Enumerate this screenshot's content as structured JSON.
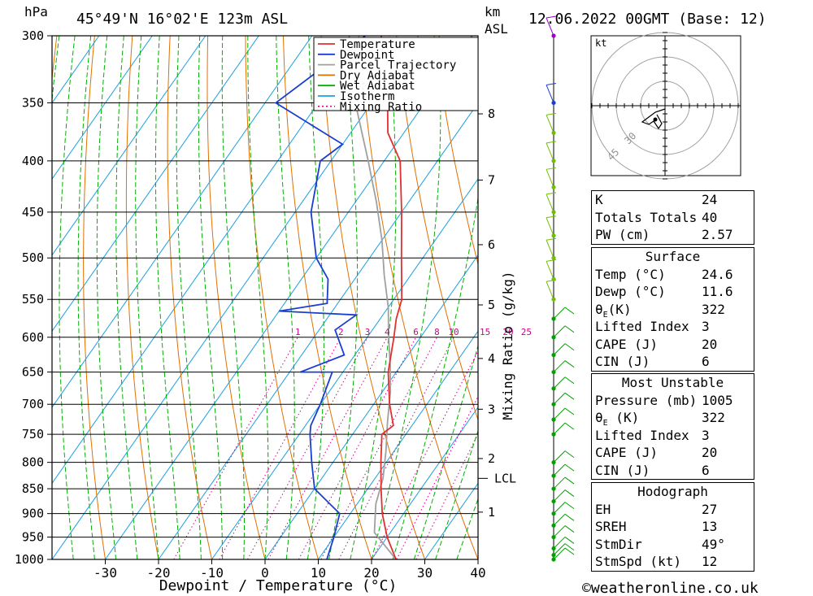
{
  "header": {
    "hpa_unit": "hPa",
    "location": "45°49'N  16°02'E  123m  ASL",
    "km_unit": "km",
    "asl_unit": "ASL",
    "datetime": "12.06.2022  00GMT  (Base: 12)"
  },
  "chart_data": {
    "type": "line",
    "title": "",
    "xlabel": "Dewpoint / Temperature (°C)",
    "ylabel": "hPa",
    "y_right_label": "Mixing Ratio (g/kg)",
    "xlim": [
      -40,
      40
    ],
    "ylim": [
      1000,
      300
    ],
    "x_ticks": [
      -30,
      -20,
      -10,
      0,
      10,
      20,
      30,
      40
    ],
    "pressure_levels": [
      300,
      350,
      400,
      450,
      500,
      550,
      600,
      650,
      700,
      750,
      800,
      850,
      900,
      950,
      1000
    ],
    "km_ticks": [
      {
        "label": "8",
        "p": 359
      },
      {
        "label": "7",
        "p": 418
      },
      {
        "label": "6",
        "p": 485
      },
      {
        "label": "5",
        "p": 557
      },
      {
        "label": "4",
        "p": 630
      },
      {
        "label": "3",
        "p": 708
      },
      {
        "label": "2",
        "p": 793
      },
      {
        "label": "1",
        "p": 897
      }
    ],
    "lcl": {
      "label": "LCL",
      "p": 830
    },
    "mixing_ratio_labels": [
      "1",
      "2",
      "3",
      "4",
      "6",
      "8",
      "10",
      "15",
      "20",
      "25"
    ],
    "mixing_ratio_values": [
      1,
      2,
      3,
      4,
      6,
      8,
      10,
      15,
      20,
      25
    ],
    "legend": [
      {
        "name": "Temperature",
        "color": "#e03030",
        "style": "solid"
      },
      {
        "name": "Dewpoint",
        "color": "#1a3fd0",
        "style": "solid"
      },
      {
        "name": "Parcel Trajectory",
        "color": "#a0a0a0",
        "style": "solid"
      },
      {
        "name": "Dry Adiabat",
        "color": "#e07000",
        "style": "solid"
      },
      {
        "name": "Wet Adiabat",
        "color": "#00b000",
        "style": "solid"
      },
      {
        "name": "Isotherm",
        "color": "#1aa0e0",
        "style": "solid"
      },
      {
        "name": "Mixing Ratio",
        "color": "#d0008a",
        "style": "dotted"
      }
    ],
    "series": [
      {
        "name": "Temperature",
        "color": "#e03030",
        "points": [
          [
            24.6,
            1000
          ],
          [
            20,
            950
          ],
          [
            16,
            900
          ],
          [
            12.5,
            850
          ],
          [
            9,
            800
          ],
          [
            5.5,
            750
          ],
          [
            6.5,
            735
          ],
          [
            3,
            700
          ],
          [
            -1.5,
            650
          ],
          [
            -5,
            600
          ],
          [
            -7,
            575
          ],
          [
            -8.5,
            550
          ],
          [
            -14,
            500
          ],
          [
            -20,
            450
          ],
          [
            -27,
            400
          ],
          [
            -33,
            375
          ],
          [
            -37,
            350
          ],
          [
            -47,
            300
          ]
        ]
      },
      {
        "name": "Dewpoint",
        "color": "#1a3fd0",
        "points": [
          [
            11.6,
            1000
          ],
          [
            10,
            950
          ],
          [
            8,
            900
          ],
          [
            0,
            850
          ],
          [
            -4,
            800
          ],
          [
            -8,
            750
          ],
          [
            -9,
            735
          ],
          [
            -10,
            700
          ],
          [
            -12,
            650
          ],
          [
            -18,
            650
          ],
          [
            -12,
            625
          ],
          [
            -17,
            590
          ],
          [
            -15,
            570
          ],
          [
            -30,
            565
          ],
          [
            -22,
            555
          ],
          [
            -25,
            525
          ],
          [
            -30,
            500
          ],
          [
            -37,
            450
          ],
          [
            -42,
            400
          ],
          [
            -40,
            385
          ],
          [
            -58,
            350
          ],
          [
            -50,
            300
          ]
        ]
      },
      {
        "name": "Parcel Trajectory",
        "color": "#a0a0a0",
        "points": [
          [
            24.6,
            1000
          ],
          [
            17,
            940
          ],
          [
            13.5,
            880
          ],
          [
            11.5,
            830
          ],
          [
            8.5,
            780
          ],
          [
            5,
            730
          ],
          [
            1.5,
            680
          ],
          [
            -2,
            640
          ],
          [
            -6,
            600
          ],
          [
            -10,
            560
          ],
          [
            -15,
            520
          ],
          [
            -20,
            480
          ],
          [
            -26,
            440
          ],
          [
            -33,
            400
          ],
          [
            -42,
            355
          ],
          [
            -51,
            310
          ],
          [
            -53,
            300
          ]
        ]
      }
    ],
    "wind_barbs_lower": [
      1000,
      990,
      975,
      950,
      925,
      900,
      875,
      850,
      825,
      800,
      750,
      725,
      700,
      675,
      650,
      625,
      600,
      575
    ],
    "wind_barbs_upper": [
      550,
      525,
      500,
      475,
      450,
      425,
      400,
      375,
      350,
      300
    ]
  },
  "hodograph": {
    "unit": "kt",
    "ring_labels": [
      "30",
      "45"
    ]
  },
  "indices": {
    "k_label": "K",
    "k_value": "24",
    "tt_label": "Totals Totals",
    "tt_value": "40",
    "pw_label": "PW (cm)",
    "pw_value": "2.57"
  },
  "surface": {
    "title": "Surface",
    "temp_label": "Temp (°C)",
    "temp_value": "24.6",
    "dewp_label": "Dewp (°C)",
    "dewp_value": "11.6",
    "theta_label": "(K)",
    "theta_value": "322",
    "li_label": "Lifted Index",
    "li_value": "3",
    "cape_label": "CAPE (J)",
    "cape_value": "20",
    "cin_label": "CIN (J)",
    "cin_value": "6"
  },
  "most_unstable": {
    "title": "Most Unstable",
    "pressure_label": "Pressure (mb)",
    "pressure_value": "1005",
    "theta_label": " (K)",
    "theta_value": "322",
    "li_label": "Lifted Index",
    "li_value": "3",
    "cape_label": "CAPE (J)",
    "cape_value": "20",
    "cin_label": "CIN (J)",
    "cin_value": "6"
  },
  "hodograph_table": {
    "title": "Hodograph",
    "eh_label": "EH",
    "eh_value": "27",
    "sreh_label": "SREH",
    "sreh_value": "13",
    "stmdir_label": "StmDir",
    "stmdir_value": "49°",
    "stmspd_label": "StmSpd (kt)",
    "stmspd_value": "12"
  },
  "footer": {
    "copyright": "©weatheronline.co.uk"
  }
}
